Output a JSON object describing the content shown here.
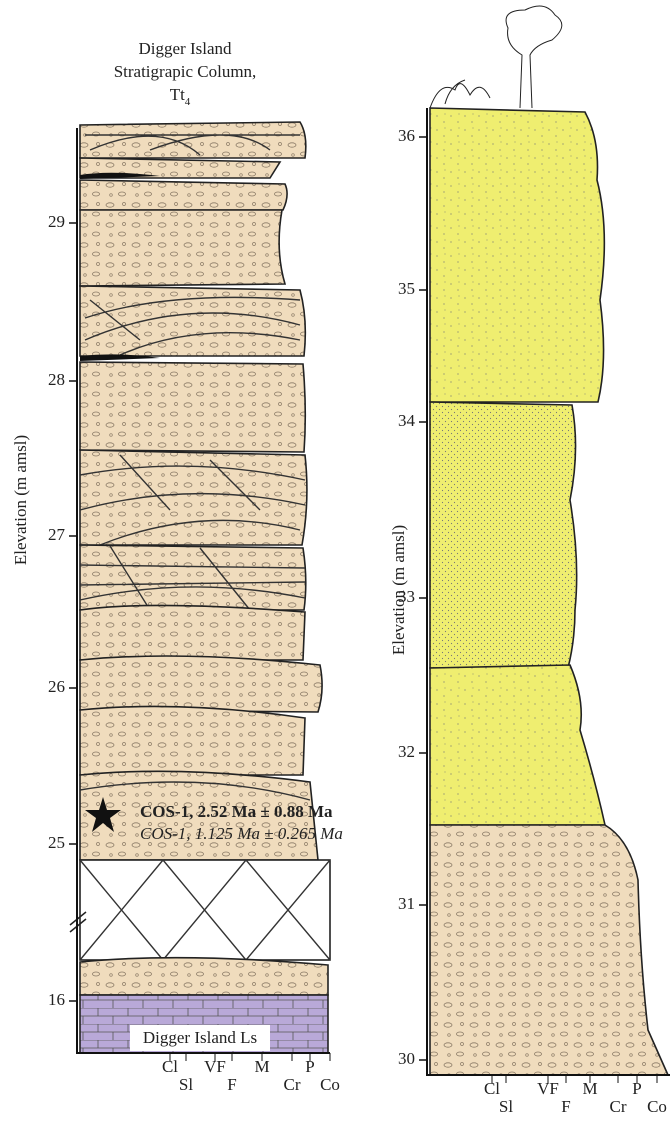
{
  "left_column": {
    "title": [
      "Digger Island",
      "Stratigrapic Column,",
      "Tt"
    ],
    "title_subscript": "4",
    "axis_label": "Elevation (m amsl)",
    "ticks": [
      "29",
      "28",
      "27",
      "26",
      "25",
      "16"
    ],
    "annotations": [
      "COS-1, 2.52 Ma ± 0.88 Ma",
      "COS-1, 1.125 Ma ± 0.265 Ma"
    ],
    "unit_label": "Digger Island Ls",
    "grain_sizes": [
      "Cl",
      "Sl",
      "VF",
      "F",
      "M",
      "Cr",
      "P",
      "Co"
    ]
  },
  "right_column": {
    "axis_label": "Elevation (m amsl)",
    "ticks": [
      "36",
      "35",
      "34",
      "33",
      "32",
      "31",
      "30"
    ],
    "grain_sizes": [
      "Cl",
      "Sl",
      "VF",
      "F",
      "M",
      "Cr",
      "P",
      "Co"
    ]
  }
}
